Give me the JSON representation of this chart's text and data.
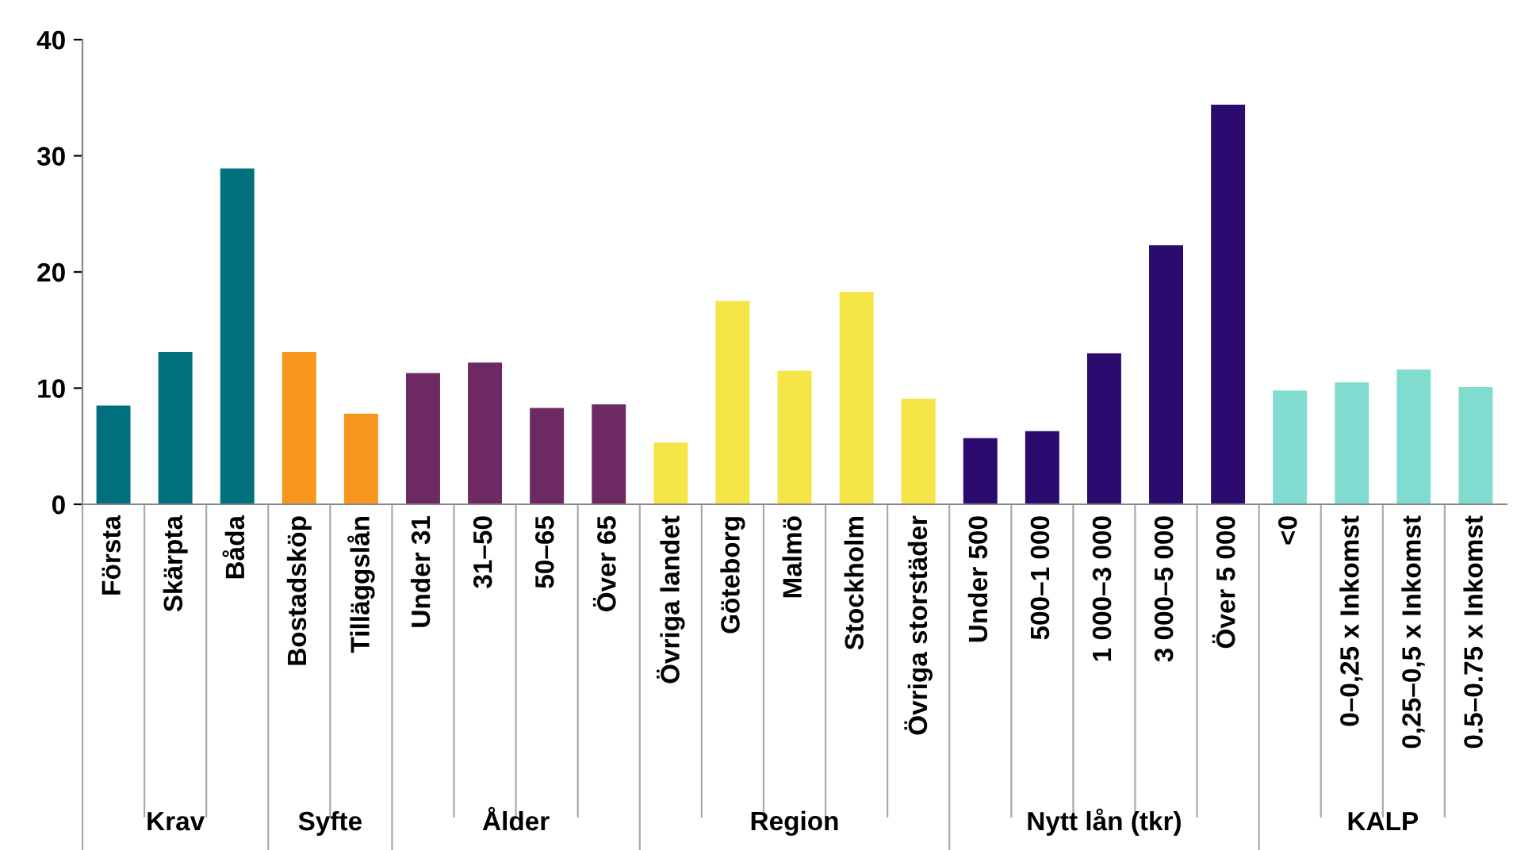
{
  "chart_data": {
    "type": "bar",
    "categories": [
      "Första",
      "Skärpta",
      "Båda",
      "Bostadsköp",
      "Tilläggslån",
      "Under 31",
      "31–50",
      "50–65",
      "Över 65",
      "Övriga landet",
      "Göteborg",
      "Malmö",
      "Stockholm",
      "Övriga storstäder",
      "Under 500",
      "500–1 000",
      "1 000–3 000",
      "3 000–5 000",
      "Över 5 000",
      "<0",
      "0–0,25 x Inkomst",
      "0,25–0,5 x Inkomst",
      "0.5–0.75 x Inkomst"
    ],
    "series": [
      {
        "name": "Krav",
        "color": "#00707f",
        "values": [
          8.5,
          13.1,
          28.9,
          null,
          null,
          null,
          null,
          null,
          null,
          null,
          null,
          null,
          null,
          null,
          null,
          null,
          null,
          null,
          null,
          null,
          null,
          null,
          null
        ]
      },
      {
        "name": "Syfte",
        "color": "#f7961d",
        "values": [
          null,
          null,
          null,
          13.1,
          7.8,
          null,
          null,
          null,
          null,
          null,
          null,
          null,
          null,
          null,
          null,
          null,
          null,
          null,
          null,
          null,
          null,
          null,
          null
        ]
      },
      {
        "name": "Ålder",
        "color": "#6d2a62",
        "values": [
          null,
          null,
          null,
          null,
          null,
          11.3,
          12.2,
          8.3,
          8.6,
          null,
          null,
          null,
          null,
          null,
          null,
          null,
          null,
          null,
          null,
          null,
          null,
          null,
          null
        ]
      },
      {
        "name": "Region",
        "color": "#f5e547",
        "values": [
          null,
          null,
          null,
          null,
          null,
          null,
          null,
          null,
          null,
          5.3,
          17.5,
          11.5,
          18.3,
          9.1,
          null,
          null,
          null,
          null,
          null,
          null,
          null,
          null,
          null
        ]
      },
      {
        "name": "Nytt lån (tkr)",
        "color": "#2b0b6e",
        "values": [
          null,
          null,
          null,
          null,
          null,
          null,
          null,
          null,
          null,
          null,
          null,
          null,
          null,
          null,
          5.7,
          6.3,
          13.0,
          22.3,
          34.4,
          null,
          null,
          null,
          null
        ]
      },
      {
        "name": "KALP",
        "color": "#7fdccf",
        "values": [
          null,
          null,
          null,
          null,
          null,
          null,
          null,
          null,
          null,
          null,
          null,
          null,
          null,
          null,
          null,
          null,
          null,
          null,
          null,
          9.8,
          10.5,
          11.6,
          10.1
        ]
      }
    ],
    "ylim": [
      0,
      40
    ],
    "yticks": [
      0,
      10,
      20,
      30,
      40
    ],
    "grid": false
  }
}
